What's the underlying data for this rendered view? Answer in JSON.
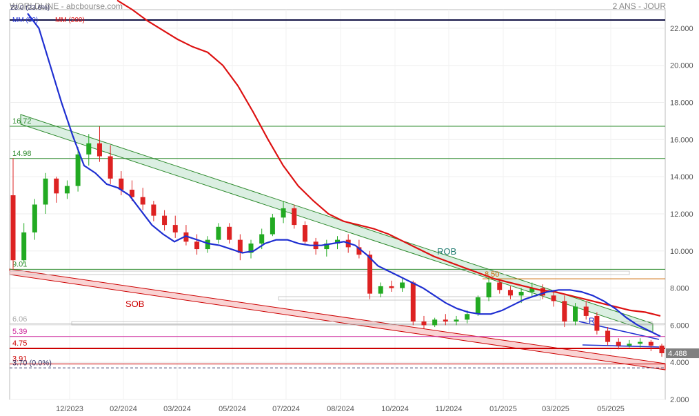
{
  "header": {
    "title": "WORLDLINE - abcbourse.com",
    "period": "2 ANS - JOUR"
  },
  "chart_data": {
    "type": "candlestick",
    "title": "WORLDLINE",
    "source": "abcbourse.com",
    "period": "2 ANS - JOUR",
    "ylim": [
      2.0,
      23.0
    ],
    "y_ticks": [
      "2.000",
      "4.000",
      "6.000",
      "8.000",
      "10.000",
      "12.000",
      "14.000",
      "16.000",
      "18.000",
      "20.000",
      "22.000"
    ],
    "x_ticks": [
      "12/2023",
      "02/2024",
      "03/2024",
      "05/2024",
      "07/2024",
      "08/2024",
      "10/2024",
      "11/2024",
      "01/2025",
      "03/2025",
      "05/2025"
    ],
    "last_price": "4.488",
    "legend": [
      "MM (50)",
      "MM (200)"
    ],
    "top_label": "23.0 (23.6%)",
    "horizontal_levels": [
      {
        "label": "16.72",
        "value": 16.72,
        "color": "#2e8b2e"
      },
      {
        "label": "14.98",
        "value": 14.98,
        "color": "#2e8b2e"
      },
      {
        "label": "9.01",
        "value": 9.01,
        "color": "#2e8b2e"
      },
      {
        "label": "6.06",
        "value": 6.06,
        "color": "#aaaaaa"
      },
      {
        "label": "5.39",
        "value": 5.39,
        "color": "#cc2299"
      },
      {
        "label": "4.75",
        "value": 4.75,
        "color": "#cc0000"
      },
      {
        "label": "3.91",
        "value": 3.91,
        "color": "#cc0000"
      },
      {
        "label": "3.70 (0.0%)",
        "value": 3.7,
        "color": "#333366"
      },
      {
        "label": "8.50",
        "value": 8.5,
        "color": "#cc6600"
      }
    ],
    "annotations": [
      "ROB",
      "SOB",
      "R"
    ],
    "ma50": [
      22.8,
      22.0,
      20.0,
      18.0,
      16.2,
      14.6,
      14.2,
      13.6,
      13.4,
      13.0,
      12.2,
      11.4,
      10.9,
      10.5,
      10.8,
      10.6,
      10.4,
      10.3,
      10.1,
      9.9,
      10.0,
      10.4,
      10.6,
      10.6,
      10.4,
      10.3,
      10.3,
      10.4,
      10.5,
      10.3,
      9.8,
      9.2,
      8.9,
      8.6,
      8.3,
      8.0,
      7.6,
      7.2,
      6.9,
      6.7,
      6.6,
      6.6,
      6.8,
      7.1,
      7.4,
      7.6,
      7.8,
      7.9,
      7.9,
      7.8,
      7.6,
      7.3,
      6.9,
      6.4,
      6.0,
      5.7,
      5.4
    ],
    "ma200": [
      23.5,
      23.0,
      22.4,
      21.9,
      21.4,
      21.0,
      20.7,
      20.0,
      18.9,
      17.5,
      16.0,
      14.6,
      13.5,
      12.7,
      12.0,
      11.6,
      11.4,
      11.2,
      10.9,
      10.5,
      10.1,
      9.7,
      9.4,
      9.1,
      8.8,
      8.5,
      8.3,
      8.1,
      7.9,
      7.8,
      7.6,
      7.4,
      7.2,
      7.0,
      6.8,
      6.7,
      6.5
    ],
    "ohlc": [
      [
        13.0,
        15.0,
        9.0,
        9.5
      ],
      [
        9.5,
        11.5,
        9.3,
        11.0
      ],
      [
        11.0,
        12.8,
        10.6,
        12.5
      ],
      [
        12.5,
        14.2,
        12.0,
        13.9
      ],
      [
        13.9,
        14.0,
        12.6,
        13.1
      ],
      [
        13.1,
        13.8,
        12.8,
        13.5
      ],
      [
        13.5,
        15.6,
        13.2,
        15.2
      ],
      [
        15.2,
        16.3,
        14.6,
        15.8
      ],
      [
        15.8,
        16.7,
        14.8,
        15.1
      ],
      [
        15.1,
        15.7,
        13.6,
        13.9
      ],
      [
        13.9,
        14.3,
        13.0,
        13.3
      ],
      [
        13.3,
        13.8,
        12.7,
        12.9
      ],
      [
        12.9,
        13.4,
        12.2,
        12.5
      ],
      [
        12.5,
        12.7,
        11.6,
        11.9
      ],
      [
        11.9,
        12.2,
        11.1,
        11.4
      ],
      [
        11.4,
        11.9,
        10.7,
        11.0
      ],
      [
        11.0,
        11.4,
        10.3,
        10.5
      ],
      [
        10.5,
        10.9,
        9.8,
        10.1
      ],
      [
        10.1,
        10.8,
        9.9,
        10.6
      ],
      [
        10.6,
        11.5,
        10.4,
        11.3
      ],
      [
        11.3,
        11.5,
        10.4,
        10.6
      ],
      [
        10.6,
        10.9,
        9.5,
        9.9
      ],
      [
        9.9,
        10.6,
        9.6,
        10.4
      ],
      [
        10.4,
        11.2,
        10.1,
        10.9
      ],
      [
        10.9,
        12.0,
        10.8,
        11.8
      ],
      [
        11.8,
        12.7,
        11.5,
        12.3
      ],
      [
        12.3,
        12.5,
        11.2,
        11.4
      ],
      [
        11.4,
        11.6,
        10.3,
        10.5
      ],
      [
        10.5,
        10.7,
        9.8,
        10.1
      ],
      [
        10.1,
        10.6,
        9.7,
        10.4
      ],
      [
        10.4,
        10.8,
        10.1,
        10.6
      ],
      [
        10.6,
        10.9,
        9.9,
        10.2
      ],
      [
        10.2,
        10.6,
        9.6,
        9.8
      ],
      [
        9.8,
        10.0,
        7.4,
        7.7
      ],
      [
        7.7,
        8.3,
        7.5,
        8.1
      ],
      [
        8.1,
        8.4,
        7.8,
        8.0
      ],
      [
        8.0,
        8.5,
        7.8,
        8.3
      ],
      [
        8.3,
        8.4,
        6.0,
        6.2
      ],
      [
        6.2,
        6.5,
        5.8,
        6.0
      ],
      [
        6.0,
        6.4,
        5.9,
        6.3
      ],
      [
        6.3,
        6.6,
        6.0,
        6.2
      ],
      [
        6.2,
        6.5,
        6.0,
        6.3
      ],
      [
        6.3,
        6.8,
        6.1,
        6.6
      ],
      [
        6.6,
        7.6,
        6.5,
        7.5
      ],
      [
        7.5,
        8.6,
        7.3,
        8.3
      ],
      [
        8.3,
        8.4,
        7.7,
        7.9
      ],
      [
        7.9,
        8.1,
        7.4,
        7.6
      ],
      [
        7.6,
        8.0,
        7.2,
        7.8
      ],
      [
        7.8,
        8.3,
        7.5,
        8.0
      ],
      [
        8.0,
        8.2,
        7.4,
        7.6
      ],
      [
        7.6,
        7.9,
        7.0,
        7.3
      ],
      [
        7.3,
        7.6,
        5.9,
        6.2
      ],
      [
        6.2,
        7.2,
        6.0,
        7.0
      ],
      [
        7.0,
        7.3,
        6.3,
        6.5
      ],
      [
        6.5,
        6.7,
        5.5,
        5.7
      ],
      [
        5.7,
        5.9,
        4.9,
        5.1
      ],
      [
        5.1,
        5.3,
        4.7,
        4.9
      ],
      [
        4.9,
        5.2,
        4.8,
        5.0
      ],
      [
        5.0,
        5.3,
        4.8,
        5.1
      ],
      [
        5.1,
        5.2,
        4.6,
        4.9
      ],
      [
        4.9,
        5.0,
        4.3,
        4.49
      ]
    ]
  }
}
